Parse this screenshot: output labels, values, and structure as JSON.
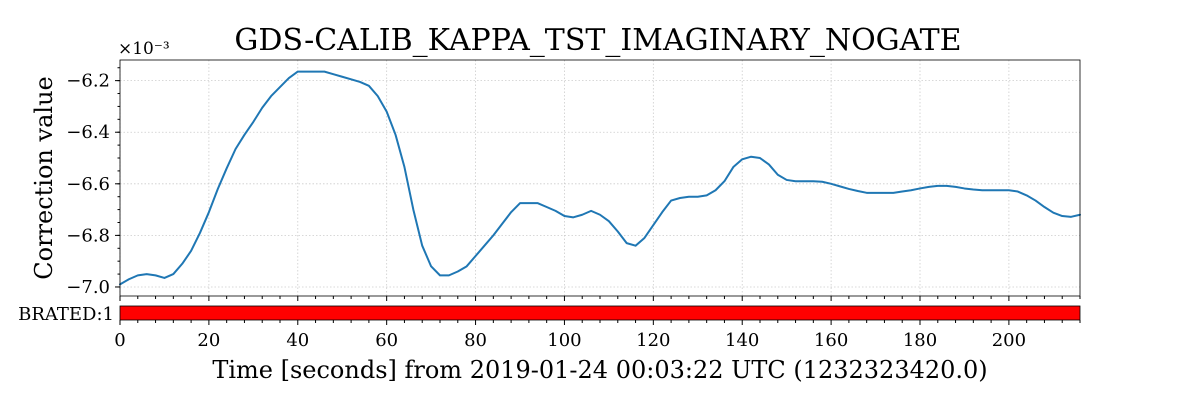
{
  "chart_data": {
    "type": "line",
    "title": "GDS-CALIB_KAPPA_TST_IMAGINARY_NOGATE",
    "ylabel": "Correction value",
    "xlabel": "Time [seconds] from 2019-01-24 00:03:22 UTC (1232323420.0)",
    "y_exponent_label": "×10⁻³",
    "y_scale_multiplier": 0.001,
    "xlim": [
      0,
      216
    ],
    "ylim": [
      -7.035,
      -6.12
    ],
    "x_ticks": [
      0,
      20,
      40,
      60,
      80,
      100,
      120,
      140,
      160,
      180,
      200
    ],
    "x_tick_labels": [
      "0",
      "20",
      "40",
      "60",
      "80",
      "100",
      "120",
      "140",
      "160",
      "180",
      "200"
    ],
    "y_ticks": [
      -7.0,
      -6.8,
      -6.6,
      -6.4,
      -6.2
    ],
    "y_tick_labels": [
      "−7.0",
      "−6.8",
      "−6.6",
      "−6.4",
      "−6.2"
    ],
    "grid": true,
    "series_color": "#1f77b4",
    "series": [
      {
        "x": [
          0,
          2,
          4,
          6,
          8,
          10,
          12,
          14,
          16,
          18,
          20,
          22,
          24,
          26,
          28,
          30,
          32,
          34,
          36,
          38,
          40,
          42,
          44,
          46,
          48,
          50,
          52,
          54,
          56,
          58,
          60,
          62,
          64,
          66,
          68,
          70,
          72,
          74,
          76,
          78,
          80,
          82,
          84,
          86,
          88,
          90,
          92,
          94,
          96,
          98,
          100,
          102,
          104,
          106,
          108,
          110,
          112,
          114,
          116,
          118,
          120,
          122,
          124,
          126,
          128,
          130,
          132,
          134,
          136,
          138,
          140,
          142,
          144,
          146,
          148,
          150,
          152,
          154,
          156,
          158,
          160,
          162,
          164,
          166,
          168,
          170,
          172,
          174,
          176,
          178,
          180,
          182,
          184,
          186,
          188,
          190,
          192,
          194,
          196,
          198,
          200,
          202,
          204,
          206,
          208,
          210,
          212,
          214,
          216
        ],
        "y": [
          -6.99,
          -6.97,
          -6.955,
          -6.95,
          -6.955,
          -6.965,
          -6.95,
          -6.91,
          -6.86,
          -6.79,
          -6.71,
          -6.62,
          -6.54,
          -6.465,
          -6.41,
          -6.36,
          -6.305,
          -6.26,
          -6.225,
          -6.19,
          -6.165,
          -6.165,
          -6.165,
          -6.165,
          -6.175,
          -6.185,
          -6.195,
          -6.205,
          -6.22,
          -6.26,
          -6.32,
          -6.41,
          -6.535,
          -6.7,
          -6.84,
          -6.92,
          -6.955,
          -6.955,
          -6.94,
          -6.92,
          -6.88,
          -6.84,
          -6.8,
          -6.755,
          -6.71,
          -6.675,
          -6.675,
          -6.675,
          -6.69,
          -6.705,
          -6.725,
          -6.73,
          -6.72,
          -6.705,
          -6.72,
          -6.745,
          -6.785,
          -6.83,
          -6.84,
          -6.81,
          -6.76,
          -6.71,
          -6.665,
          -6.655,
          -6.65,
          -6.65,
          -6.645,
          -6.625,
          -6.59,
          -6.535,
          -6.505,
          -6.495,
          -6.5,
          -6.525,
          -6.565,
          -6.585,
          -6.59,
          -6.59,
          -6.59,
          -6.592,
          -6.6,
          -6.61,
          -6.62,
          -6.628,
          -6.635,
          -6.635,
          -6.635,
          -6.635,
          -6.63,
          -6.625,
          -6.618,
          -6.612,
          -6.608,
          -6.608,
          -6.612,
          -6.618,
          -6.622,
          -6.625,
          -6.625,
          -6.625,
          -6.625,
          -6.63,
          -6.645,
          -6.665,
          -6.69,
          -6.712,
          -6.725,
          -6.728,
          -6.72
        ]
      }
    ],
    "state_bar": {
      "label": "BRATED:1",
      "color": "#ff0000",
      "xrange": [
        0,
        216
      ]
    }
  }
}
